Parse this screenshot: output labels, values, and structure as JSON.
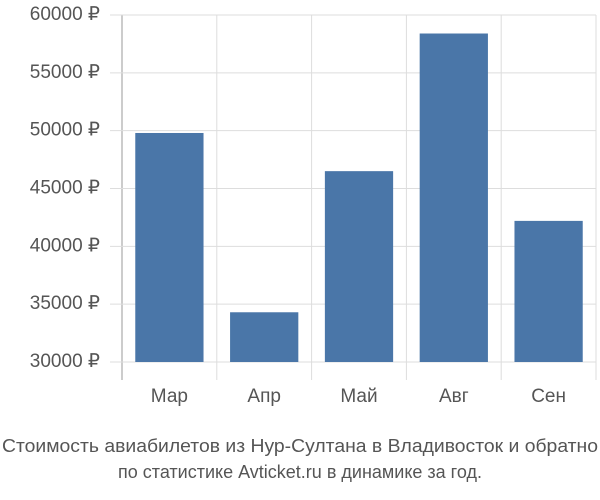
{
  "chart_data": {
    "type": "bar",
    "title": "Стоимость авиабилетов из Нур-Султана в Владивосток и обратно",
    "subtitle": "по статистике Avticket.ru в динамике за год.",
    "categories": [
      "Мар",
      "Апр",
      "Май",
      "Авг",
      "Сен"
    ],
    "values": [
      49800,
      34300,
      46500,
      58400,
      42200
    ],
    "color": "#4a76a8",
    "ylim": [
      30000,
      60000
    ],
    "yticks": [
      {
        "value": 30000,
        "label": "30000 ₽"
      },
      {
        "value": 35000,
        "label": "35000 ₽"
      },
      {
        "value": 40000,
        "label": "40000 ₽"
      },
      {
        "value": 45000,
        "label": "45000 ₽"
      },
      {
        "value": 50000,
        "label": "50000 ₽"
      },
      {
        "value": 55000,
        "label": "55000 ₽"
      },
      {
        "value": 60000,
        "label": "60000 ₽"
      }
    ],
    "grid": true
  }
}
